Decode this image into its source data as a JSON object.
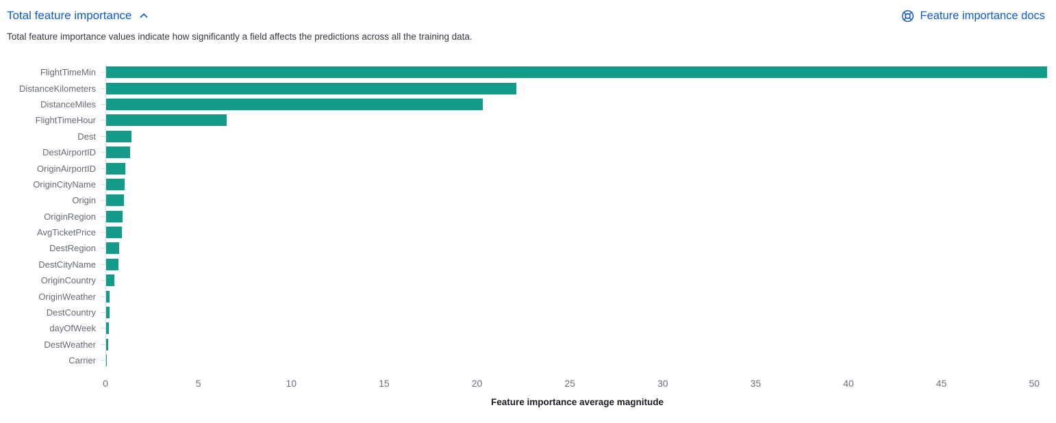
{
  "header": {
    "title": "Total feature importance",
    "docs_link_label": "Feature importance docs"
  },
  "description": "Total feature importance values indicate how significantly a field affects the predictions across all the training data.",
  "colors": {
    "link": "#0b5cd0",
    "bar": "#149b8a",
    "axis": "#d3dae6"
  },
  "chart_data": {
    "type": "bar",
    "orientation": "horizontal",
    "title": "Total feature importance",
    "xlabel": "Feature importance average magnitude",
    "ylabel": "",
    "categories": [
      "FlightTimeMin",
      "DistanceKilometers",
      "DistanceMiles",
      "FlightTimeHour",
      "Dest",
      "DestAirportID",
      "OriginAirportID",
      "OriginCityName",
      "Origin",
      "OriginRegion",
      "AvgTicketPrice",
      "DestRegion",
      "DestCityName",
      "OriginCountry",
      "OriginWeather",
      "DestCountry",
      "dayOfWeek",
      "DestWeather",
      "Carrier"
    ],
    "values": [
      50.7,
      22.1,
      20.3,
      6.5,
      1.35,
      1.3,
      1.05,
      1.0,
      0.95,
      0.9,
      0.85,
      0.7,
      0.65,
      0.45,
      0.2,
      0.17,
      0.13,
      0.1,
      0.03
    ],
    "x_ticks": [
      0,
      5,
      10,
      15,
      20,
      25,
      30,
      35,
      40,
      45,
      50
    ],
    "xlim": [
      0,
      50.8
    ],
    "grid": false,
    "legend": "none",
    "bar_color": "#149b8a"
  }
}
